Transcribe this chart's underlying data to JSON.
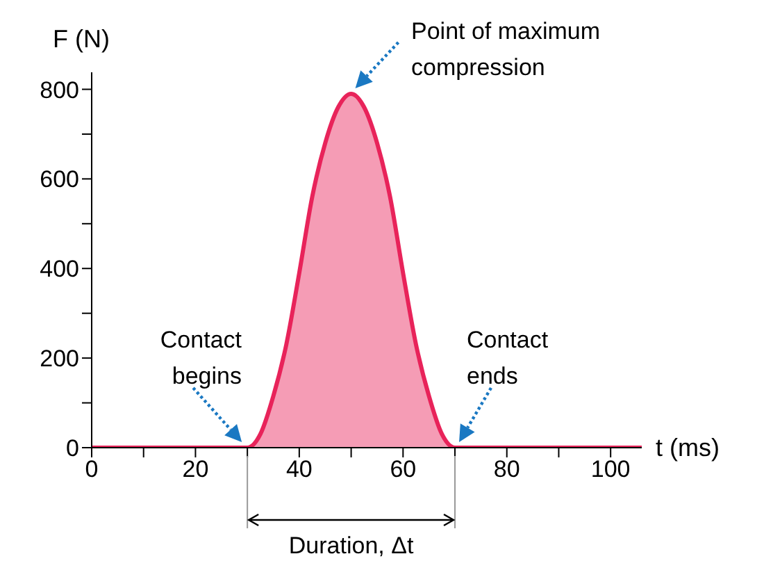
{
  "chart_data": {
    "type": "area",
    "xlabel": "t (ms)",
    "ylabel": "F (N)",
    "x": [
      0,
      10,
      20,
      30,
      32.5,
      35,
      37.5,
      40,
      42.5,
      45,
      47.5,
      50,
      52.5,
      55,
      57.5,
      60,
      62.5,
      65,
      67.5,
      70,
      80,
      90,
      100,
      106
    ],
    "series": [
      {
        "color": "#e8235a",
        "values": [
          0,
          0,
          0,
          0,
          30,
          115,
          230,
          390,
          560,
          680,
          760,
          790,
          760,
          680,
          560,
          390,
          230,
          115,
          30,
          0,
          0,
          0,
          0,
          0
        ]
      }
    ],
    "xlim": [
      0,
      106
    ],
    "xticks": [
      0,
      {
        "value": 10,
        "label": null
      },
      20,
      {
        "value": 30,
        "label": null
      },
      40,
      {
        "value": 50,
        "label": null
      },
      60,
      {
        "value": 70,
        "label": null
      },
      80,
      {
        "value": 90,
        "label": null
      },
      100
    ],
    "ylim": [
      0,
      838
    ],
    "yticks": [
      0,
      {
        "value": 100,
        "label": null
      },
      200,
      {
        "value": 300,
        "label": null
      },
      400,
      {
        "value": 500,
        "label": null
      },
      600,
      {
        "value": 700,
        "label": null
      },
      800
    ],
    "annotations": [
      {
        "text": "Point of maximum compression",
        "x": 50,
        "y": 790
      },
      {
        "text": "Contact begins",
        "x": 30,
        "y": 0
      },
      {
        "text": "Contact ends",
        "x": 70,
        "y": 0
      },
      "Duration, Δt"
    ]
  }
}
